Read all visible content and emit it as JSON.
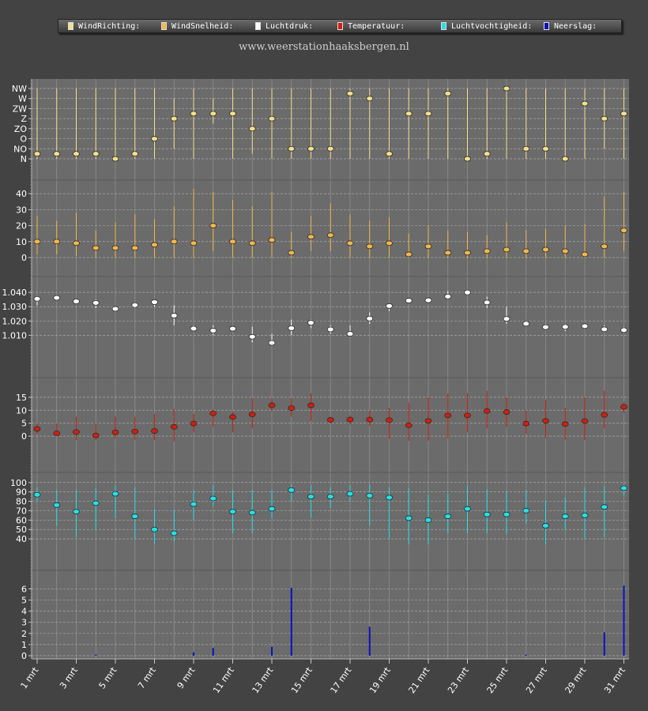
{
  "legend": {
    "items": [
      {
        "label": "WindRichting:",
        "color": "#f2e08c"
      },
      {
        "label": "WindSnelheid:",
        "color": "#f2b64c"
      },
      {
        "label": "Luchtdruk:",
        "color": "#ffffff"
      },
      {
        "label": "Temperatuur:",
        "color": "#d21f10"
      },
      {
        "label": "Luchtvochtigheid:",
        "color": "#25e0e8"
      },
      {
        "label": "Neerslag:",
        "color": "#1010c0"
      }
    ]
  },
  "subtitle": "www.weerstationhaaksbergen.nl",
  "chart_data": {
    "type": "multi-panel",
    "x_labels": [
      "1 mrt",
      "3 mrt",
      "5 mrt",
      "7 mrt",
      "9 mrt",
      "11 mrt",
      "13 mrt",
      "15 mrt",
      "17 mrt",
      "19 mrt",
      "21 mrt",
      "23 mrt",
      "25 mrt",
      "27 mrt",
      "29 mrt",
      "31 mrt"
    ],
    "days": [
      1,
      2,
      3,
      4,
      5,
      6,
      7,
      8,
      9,
      10,
      11,
      12,
      13,
      14,
      15,
      16,
      17,
      18,
      19,
      20,
      21,
      22,
      23,
      24,
      25,
      26,
      27,
      28,
      29,
      30,
      31
    ],
    "panels": [
      {
        "name": "WindRichting",
        "type": "range-dot",
        "color": "#f2e08c",
        "tick_labels": [
          "N",
          "NO",
          "O",
          "ZO",
          "Z",
          "ZW",
          "W",
          "NW"
        ],
        "ylim": [
          0,
          7
        ],
        "values": [
          0.5,
          0.5,
          0.5,
          0.5,
          0,
          0.5,
          2,
          4,
          4.5,
          4.5,
          4.5,
          3,
          4,
          1,
          1,
          1,
          6.5,
          6,
          0.5,
          4.5,
          4.5,
          6.5,
          0,
          0.5,
          7,
          1,
          1,
          0,
          5.5,
          4,
          4.5
        ],
        "low": [
          0,
          0,
          0,
          0,
          0,
          0,
          0,
          1,
          0,
          3.5,
          0,
          0.5,
          0,
          0,
          0,
          0,
          0,
          0,
          0,
          0,
          0,
          0,
          0,
          0,
          0,
          0,
          0,
          0,
          0,
          1,
          0
        ],
        "high": [
          7,
          7,
          7,
          7,
          7,
          7,
          7,
          6,
          7,
          6,
          7,
          7,
          7,
          7,
          7,
          7,
          7,
          7,
          7,
          7,
          7,
          7,
          7,
          7,
          7,
          7,
          7,
          7,
          7,
          7,
          7
        ]
      },
      {
        "name": "WindSnelheid",
        "type": "range-dot",
        "color": "#f2b64c",
        "ticks": [
          0,
          10,
          20,
          30,
          40
        ],
        "ylim": [
          0,
          44
        ],
        "values": [
          10,
          10,
          9,
          6,
          6,
          6,
          8,
          10,
          9,
          20,
          10,
          9,
          11,
          3,
          13,
          14,
          9,
          7,
          9,
          2,
          7,
          3,
          3,
          4,
          5,
          4,
          5,
          4,
          2,
          7,
          17
        ],
        "low": [
          2,
          2,
          1,
          0,
          0,
          0,
          0,
          0,
          0,
          4,
          0,
          0,
          0,
          0,
          4,
          4,
          0,
          0,
          0,
          0,
          0,
          0,
          0,
          0,
          0,
          0,
          0,
          0,
          0,
          0,
          4
        ],
        "high": [
          26,
          23,
          28,
          17,
          22,
          27,
          24,
          32,
          43,
          41,
          36,
          32,
          41,
          16,
          26,
          34,
          27,
          23,
          25,
          15,
          20,
          17,
          16,
          14,
          22,
          17,
          18,
          20,
          21,
          38,
          41
        ]
      },
      {
        "name": "Luchtdruk",
        "type": "range-dot",
        "color": "#ffffff",
        "ticks": [
          1.01,
          1.02,
          1.03,
          1.04
        ],
        "tick_labels": [
          "1.010",
          "1.020",
          "1.030",
          "1.040"
        ],
        "ylim": [
          0.9975,
          1.0445
        ],
        "values": [
          1.0355,
          1.0362,
          1.0337,
          1.0327,
          1.0285,
          1.0311,
          1.0332,
          1.0238,
          1.0147,
          1.0133,
          1.0146,
          1.009,
          1.0047,
          1.015,
          1.0188,
          1.0141,
          1.011,
          1.0217,
          1.0305,
          1.0343,
          1.0345,
          1.0371,
          1.04,
          1.033,
          1.0215,
          1.0181,
          1.0157,
          1.0159,
          1.0164,
          1.0142,
          1.0136
        ],
        "low": [
          1.031,
          1.035,
          1.032,
          1.029,
          1.027,
          1.029,
          1.03,
          1.017,
          1.013,
          1.01,
          1.014,
          1.005,
          1.004,
          1.01,
          1.015,
          1.011,
          1.009,
          1.018,
          1.027,
          1.033,
          1.033,
          1.035,
          1.038,
          1.029,
          1.018,
          1.017,
          1.014,
          1.013,
          1.015,
          1.013,
          1.012
        ],
        "high": [
          1.037,
          1.037,
          1.035,
          1.035,
          1.03,
          1.033,
          1.035,
          1.031,
          1.017,
          1.017,
          1.016,
          1.016,
          1.011,
          1.021,
          1.021,
          1.017,
          1.017,
          1.026,
          1.032,
          1.036,
          1.036,
          1.041,
          1.041,
          1.037,
          1.03,
          1.02,
          1.018,
          1.018,
          1.018,
          1.017,
          1.016
        ]
      },
      {
        "name": "Temperatuur",
        "type": "range-dot",
        "color": "#d21f10",
        "ticks": [
          0,
          5,
          10,
          15
        ],
        "ylim": [
          -3,
          18
        ],
        "values": [
          2.8,
          1.1,
          1.6,
          0.3,
          1.5,
          1.8,
          2.0,
          3.6,
          4.9,
          8.8,
          7.4,
          8.4,
          11.9,
          10.8,
          11.9,
          6.3,
          6.4,
          6.4,
          6.2,
          4.2,
          5.9,
          8.0,
          8.0,
          9.7,
          9.3,
          4.9,
          5.9,
          4.7,
          5.8,
          8.2,
          11.3
        ],
        "low": [
          1,
          0,
          -1.5,
          -1.5,
          -1,
          -1.5,
          -1.5,
          -2,
          1.5,
          3.5,
          1.5,
          3,
          9.5,
          7.5,
          6,
          5,
          4.5,
          4,
          -1,
          -1.8,
          -1.7,
          -0.7,
          1.5,
          3,
          3.5,
          1,
          -0.8,
          -1.3,
          -1.5,
          3,
          9
        ],
        "high": [
          5,
          5,
          7.5,
          5,
          7.5,
          7.5,
          8.5,
          10.5,
          8.5,
          10.5,
          9.5,
          14.5,
          14.5,
          14.5,
          16.5,
          7,
          8,
          10,
          11,
          13,
          15,
          16.5,
          16.5,
          17.5,
          15,
          10,
          14,
          11,
          15,
          17.5,
          13
        ]
      },
      {
        "name": "Luchtvochtigheid",
        "type": "range-dot",
        "color": "#25e0e8",
        "ticks": [
          40,
          50,
          60,
          70,
          80,
          90,
          100
        ],
        "ylim": [
          30,
          104
        ],
        "values": [
          87,
          76,
          69,
          78,
          88,
          64,
          50,
          46,
          77,
          83,
          69,
          68,
          72,
          92,
          85,
          85,
          88,
          86,
          84,
          62,
          60,
          64,
          72,
          66,
          66,
          70,
          54,
          64,
          65,
          74,
          94
        ],
        "low": [
          80,
          54,
          42,
          50,
          62,
          40,
          34,
          37,
          60,
          75,
          46,
          46,
          62,
          80,
          63,
          73,
          80,
          54,
          40,
          34,
          34,
          46,
          46,
          46,
          45,
          56,
          34,
          50,
          40,
          42,
          86
        ],
        "high": [
          95,
          92,
          92,
          94,
          97,
          95,
          72,
          71,
          92,
          97,
          92,
          92,
          92,
          98,
          97,
          95,
          97,
          98,
          95,
          94,
          87,
          88,
          97,
          93,
          91,
          92,
          81,
          84,
          95,
          96,
          98
        ]
      },
      {
        "name": "Neerslag",
        "type": "bar",
        "color": "#1010c0",
        "ticks": [
          0,
          1,
          2,
          3,
          4,
          5,
          6
        ],
        "ylim": [
          0,
          6.6
        ],
        "values": [
          0,
          0,
          0,
          0.1,
          0,
          0,
          0,
          0,
          0.3,
          0.7,
          0,
          0,
          0.8,
          6.1,
          0,
          0,
          0,
          2.6,
          0,
          0,
          0,
          0,
          0,
          0,
          0,
          0.1,
          0,
          0,
          0,
          2.1,
          6.3
        ]
      }
    ]
  }
}
